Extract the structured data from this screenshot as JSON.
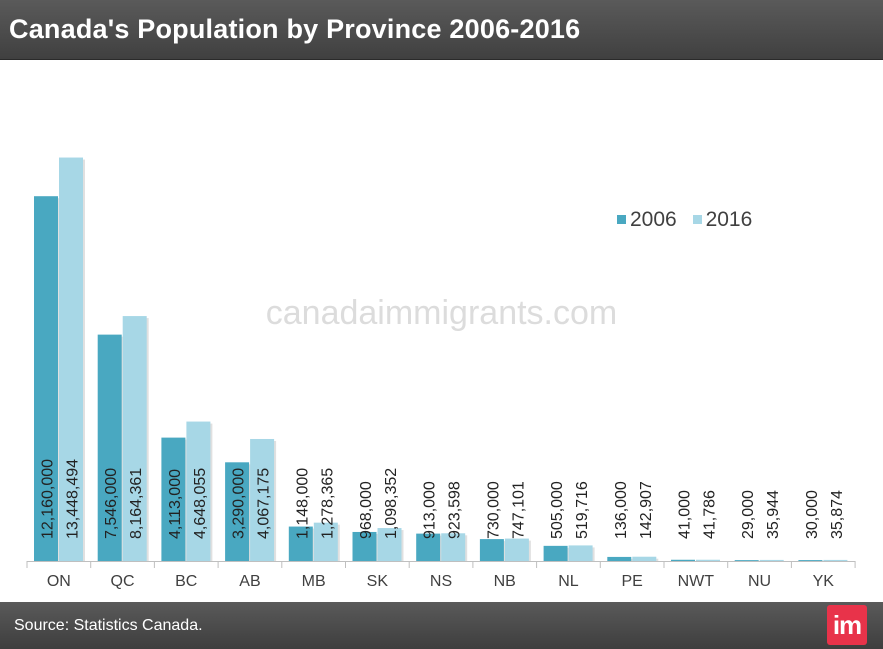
{
  "header": {
    "title": "Canada's Population by Province 2006-2016"
  },
  "watermark": "canadaimmigrants.com",
  "footer": {
    "source": "Source: Statistics Canada.",
    "logo_text": "im"
  },
  "colors": {
    "series_2006": "#49a8c1",
    "series_2016": "#a7d7e6",
    "axis": "#bfbfbf"
  },
  "chart_data": {
    "type": "bar",
    "categories": [
      "ON",
      "QC",
      "BC",
      "AB",
      "MB",
      "SK",
      "NS",
      "NB",
      "NL",
      "PE",
      "NWT",
      "NU",
      "YK"
    ],
    "series": [
      {
        "name": "2006",
        "values": [
          12160000,
          7546000,
          4113000,
          3290000,
          1148000,
          968000,
          913000,
          730000,
          505000,
          136000,
          41000,
          29000,
          30000
        ],
        "labels": [
          "12,160,000",
          "7,546,000",
          "4,113,000",
          "3,290,000",
          "1,148,000",
          "968,000",
          "913,000",
          "730,000",
          "505,000",
          "136,000",
          "41,000",
          "29,000",
          "30,000"
        ]
      },
      {
        "name": "2016",
        "values": [
          13448494,
          8164361,
          4648055,
          4067175,
          1278365,
          1098352,
          923598,
          747101,
          519716,
          142907,
          41786,
          35944,
          35874
        ],
        "labels": [
          "13,448,494",
          "8,164,361",
          "4,648,055",
          "4,067,175",
          "1,278,365",
          "1,098,352",
          "923,598",
          "747,101",
          "519,716",
          "142,907",
          "41,786",
          "35,944",
          "35,874"
        ]
      }
    ],
    "ylim": [
      0,
      15000000
    ],
    "grid": false,
    "legend_position": "top-right",
    "data_labels": "vertical"
  }
}
